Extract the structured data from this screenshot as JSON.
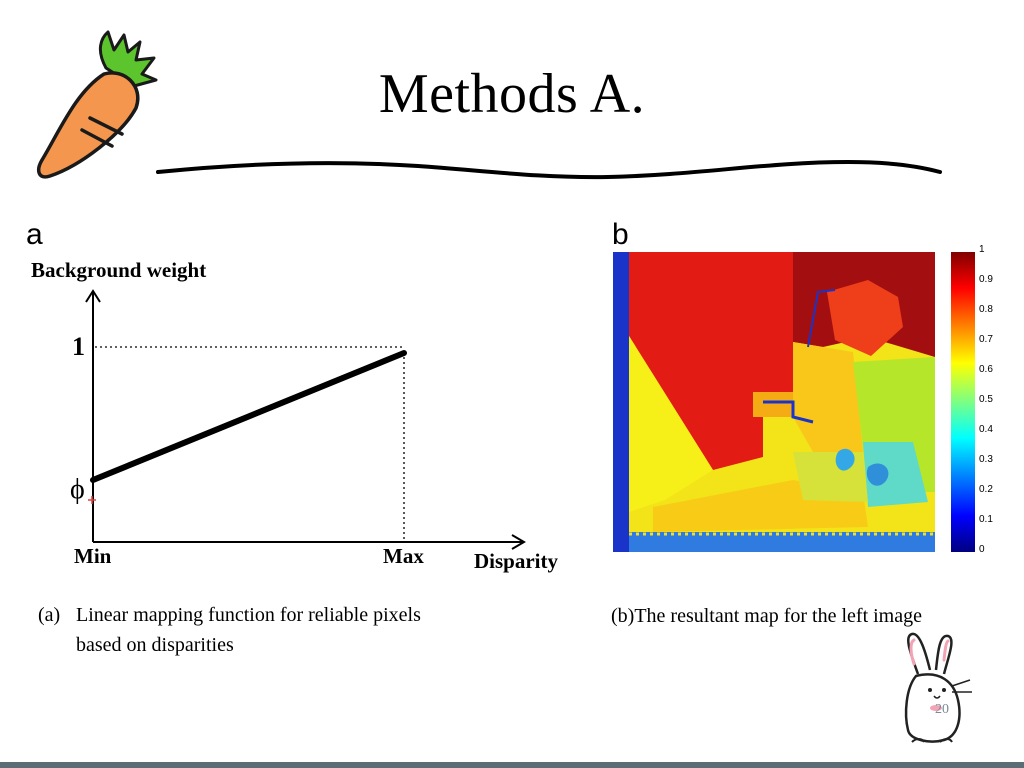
{
  "slide": {
    "title": "Methods A.",
    "page_number": "20",
    "theme_colors": {
      "carrot": "#f4964d",
      "carrot_top": "#5cc42c",
      "bottom_bar": "#5d6d76"
    }
  },
  "panel_a": {
    "letter": "a",
    "y_axis_label": "Background weight",
    "y_tick_top": "1",
    "y_tick_bottom": "ϕ",
    "x_tick_min": "Min",
    "x_tick_max": "Max",
    "x_axis_label": "Disparity",
    "caption_marker": "(a)",
    "caption_line1": "Linear mapping function for reliable pixels",
    "caption_line2": "based on disparities"
  },
  "panel_b": {
    "letter": "b",
    "caption": "(b)The resultant map for the left image",
    "colorbar_labels": [
      "1",
      "0.9",
      "0.8",
      "0.7",
      "0.6",
      "0.5",
      "0.4",
      "0.3",
      "0.2",
      "0.1",
      "0"
    ]
  },
  "chart_data": {
    "type": "line",
    "title": "",
    "xlabel": "Disparity",
    "ylabel": "Background weight",
    "x": [
      "Min",
      "Max"
    ],
    "series": [
      {
        "values": [
          "ϕ",
          "1"
        ]
      }
    ],
    "grid": false
  }
}
